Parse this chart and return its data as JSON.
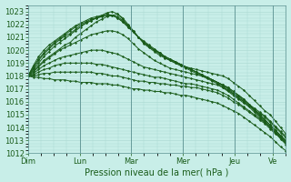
{
  "background_color": "#c8eee8",
  "grid_color": "#a8d8d0",
  "line_color": "#1a5c1a",
  "ylim": [
    1012,
    1023.5
  ],
  "yticks": [
    1012,
    1013,
    1014,
    1015,
    1016,
    1017,
    1018,
    1019,
    1020,
    1021,
    1022,
    1023
  ],
  "xlabel": "Pression niveau de la mer( hPa )",
  "days": [
    "Dim",
    "Lun",
    "Mar",
    "Mer",
    "Jeu",
    "Ve"
  ],
  "day_positions": [
    0,
    48,
    96,
    144,
    192,
    228
  ],
  "total_hours": 240,
  "lines": [
    [
      1018.0,
      1018.4,
      1018.8,
      1019.2,
      1019.5,
      1019.8,
      1020.1,
      1020.4,
      1020.6,
      1021.0,
      1021.3,
      1021.6,
      1021.9,
      1022.2,
      1022.4,
      1022.6,
      1022.7,
      1022.8,
      1022.5,
      1022.0,
      1021.5,
      1021.0,
      1020.5,
      1020.2,
      1019.9,
      1019.6,
      1019.4,
      1019.2,
      1019.0,
      1018.8,
      1018.7,
      1018.6,
      1018.5,
      1018.4,
      1018.3,
      1018.2,
      1018.1,
      1018.0,
      1017.8,
      1017.5,
      1017.2,
      1016.9,
      1016.5,
      1016.1,
      1015.7,
      1015.3,
      1015.0,
      1014.5,
      1014.0,
      1013.5
    ],
    [
      1018.0,
      1018.5,
      1019.0,
      1019.5,
      1019.9,
      1020.3,
      1020.6,
      1020.9,
      1021.2,
      1021.5,
      1021.8,
      1022.1,
      1022.3,
      1022.5,
      1022.7,
      1022.9,
      1023.0,
      1022.8,
      1022.4,
      1021.9,
      1021.4,
      1021.0,
      1020.6,
      1020.3,
      1020.0,
      1019.8,
      1019.5,
      1019.3,
      1019.1,
      1018.9,
      1018.7,
      1018.5,
      1018.3,
      1018.1,
      1017.9,
      1017.7,
      1017.5,
      1017.3,
      1017.1,
      1016.8,
      1016.5,
      1016.2,
      1015.8,
      1015.4,
      1015.0,
      1014.6,
      1014.2,
      1013.8,
      1013.4,
      1013.0
    ],
    [
      1018.0,
      1018.6,
      1019.2,
      1019.7,
      1020.1,
      1020.5,
      1020.8,
      1021.1,
      1021.3,
      1021.6,
      1021.9,
      1022.1,
      1022.3,
      1022.5,
      1022.6,
      1022.7,
      1022.7,
      1022.5,
      1022.2,
      1021.8,
      1021.4,
      1021.0,
      1020.7,
      1020.4,
      1020.1,
      1019.8,
      1019.5,
      1019.3,
      1019.1,
      1018.9,
      1018.7,
      1018.5,
      1018.3,
      1018.1,
      1017.9,
      1017.7,
      1017.5,
      1017.3,
      1017.1,
      1016.8,
      1016.5,
      1016.2,
      1015.8,
      1015.4,
      1015.0,
      1014.6,
      1014.2,
      1013.8,
      1013.3,
      1012.9
    ],
    [
      1018.0,
      1018.7,
      1019.3,
      1019.8,
      1020.2,
      1020.6,
      1020.9,
      1021.2,
      1021.5,
      1021.8,
      1022.0,
      1022.2,
      1022.4,
      1022.5,
      1022.6,
      1022.7,
      1022.7,
      1022.6,
      1022.3,
      1021.9,
      1021.5,
      1021.0,
      1020.6,
      1020.3,
      1020.0,
      1019.8,
      1019.5,
      1019.3,
      1019.1,
      1018.9,
      1018.7,
      1018.5,
      1018.3,
      1018.1,
      1017.9,
      1017.7,
      1017.5,
      1017.2,
      1016.9,
      1016.6,
      1016.3,
      1016.0,
      1015.7,
      1015.3,
      1014.9,
      1014.5,
      1014.1,
      1013.7,
      1013.2,
      1012.8
    ],
    [
      1018.0,
      1018.8,
      1019.5,
      1020.0,
      1020.4,
      1020.7,
      1021.0,
      1021.3,
      1021.6,
      1021.9,
      1022.1,
      1022.3,
      1022.5,
      1022.6,
      1022.7,
      1022.8,
      1022.7,
      1022.5,
      1022.2,
      1021.8,
      1021.4,
      1021.0,
      1020.6,
      1020.3,
      1020.0,
      1019.7,
      1019.4,
      1019.2,
      1019.0,
      1018.8,
      1018.6,
      1018.4,
      1018.2,
      1018.0,
      1017.8,
      1017.6,
      1017.4,
      1017.1,
      1016.8,
      1016.5,
      1016.2,
      1015.9,
      1015.6,
      1015.2,
      1014.8,
      1014.4,
      1014.0,
      1013.6,
      1013.1,
      1012.7
    ],
    [
      1018.0,
      1018.3,
      1018.7,
      1019.1,
      1019.4,
      1019.7,
      1020.0,
      1020.2,
      1020.4,
      1020.6,
      1020.8,
      1021.0,
      1021.2,
      1021.3,
      1021.4,
      1021.5,
      1021.5,
      1021.4,
      1021.2,
      1020.9,
      1020.5,
      1020.1,
      1019.8,
      1019.5,
      1019.2,
      1019.0,
      1018.8,
      1018.6,
      1018.5,
      1018.4,
      1018.3,
      1018.2,
      1018.1,
      1018.0,
      1017.9,
      1017.7,
      1017.5,
      1017.3,
      1017.0,
      1016.7,
      1016.4,
      1016.1,
      1015.8,
      1015.5,
      1015.2,
      1014.9,
      1014.5,
      1014.1,
      1013.7,
      1013.3
    ],
    [
      1018.0,
      1018.2,
      1018.5,
      1018.8,
      1019.0,
      1019.2,
      1019.4,
      1019.5,
      1019.6,
      1019.7,
      1019.8,
      1019.9,
      1020.0,
      1020.0,
      1020.0,
      1019.9,
      1019.8,
      1019.7,
      1019.5,
      1019.3,
      1019.1,
      1018.9,
      1018.7,
      1018.6,
      1018.5,
      1018.4,
      1018.3,
      1018.2,
      1018.1,
      1018.0,
      1017.9,
      1017.8,
      1017.7,
      1017.6,
      1017.5,
      1017.4,
      1017.3,
      1017.1,
      1016.9,
      1016.6,
      1016.3,
      1016.0,
      1015.7,
      1015.4,
      1015.1,
      1014.8,
      1014.4,
      1014.0,
      1013.6,
      1013.2
    ],
    [
      1018.0,
      1018.1,
      1018.3,
      1018.5,
      1018.6,
      1018.8,
      1018.9,
      1019.0,
      1019.0,
      1019.0,
      1019.0,
      1019.0,
      1019.0,
      1018.9,
      1018.9,
      1018.8,
      1018.7,
      1018.6,
      1018.5,
      1018.4,
      1018.3,
      1018.2,
      1018.1,
      1018.0,
      1017.9,
      1017.9,
      1017.8,
      1017.7,
      1017.6,
      1017.5,
      1017.4,
      1017.4,
      1017.3,
      1017.2,
      1017.1,
      1017.0,
      1016.9,
      1016.7,
      1016.5,
      1016.2,
      1015.9,
      1015.6,
      1015.3,
      1015.0,
      1014.7,
      1014.4,
      1014.0,
      1013.6,
      1013.3,
      1012.9
    ],
    [
      1018.0,
      1018.0,
      1018.1,
      1018.2,
      1018.2,
      1018.3,
      1018.3,
      1018.3,
      1018.3,
      1018.3,
      1018.3,
      1018.3,
      1018.3,
      1018.2,
      1018.2,
      1018.1,
      1018.0,
      1018.0,
      1017.9,
      1017.8,
      1017.7,
      1017.6,
      1017.6,
      1017.5,
      1017.5,
      1017.4,
      1017.4,
      1017.3,
      1017.3,
      1017.2,
      1017.2,
      1017.1,
      1017.1,
      1017.0,
      1016.9,
      1016.8,
      1016.7,
      1016.5,
      1016.3,
      1016.0,
      1015.8,
      1015.5,
      1015.2,
      1014.9,
      1014.6,
      1014.3,
      1013.9,
      1013.5,
      1013.2,
      1012.8
    ],
    [
      1018.0,
      1017.9,
      1017.9,
      1017.8,
      1017.8,
      1017.7,
      1017.7,
      1017.7,
      1017.6,
      1017.6,
      1017.5,
      1017.5,
      1017.5,
      1017.4,
      1017.4,
      1017.4,
      1017.3,
      1017.3,
      1017.2,
      1017.1,
      1017.0,
      1017.0,
      1016.9,
      1016.9,
      1016.8,
      1016.8,
      1016.7,
      1016.7,
      1016.6,
      1016.5,
      1016.5,
      1016.4,
      1016.3,
      1016.2,
      1016.1,
      1016.0,
      1015.9,
      1015.7,
      1015.5,
      1015.3,
      1015.1,
      1014.8,
      1014.5,
      1014.2,
      1013.9,
      1013.6,
      1013.3,
      1012.9,
      1012.5,
      1012.2
    ]
  ],
  "marker": "D",
  "marker_size": 1.2,
  "linewidth": 0.7,
  "tick_fontsize": 6.0,
  "xlabel_fontsize": 7.0,
  "tick_color": "#1a5c1a",
  "xlabel_color": "#1a5c1a",
  "figsize": [
    3.2,
    2.0
  ],
  "dpi": 100
}
